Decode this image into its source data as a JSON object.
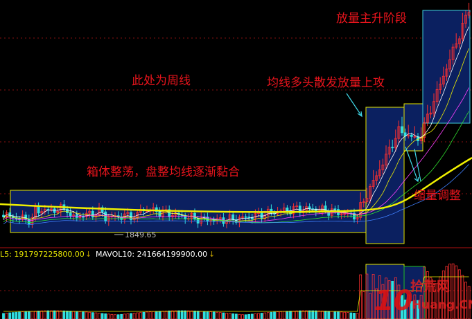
{
  "annotations": {
    "main_rise": "放量主升阶段",
    "weekly": "此处为周线",
    "bull_ma": "均线多头散发放量上攻",
    "box_range": "箱体整荡，盘整均线逐渐黏合",
    "shrink": "缩量调整"
  },
  "low_label": "1849.65",
  "volume_header": {
    "ma5": "L5: 191797225800.00",
    "ma10": "MAVOL10: 241664199900.00",
    "arrow": "↓"
  },
  "watermark": {
    "logo": "10",
    "site": "拾荒网",
    "domain": "Huang.CN"
  }
}
